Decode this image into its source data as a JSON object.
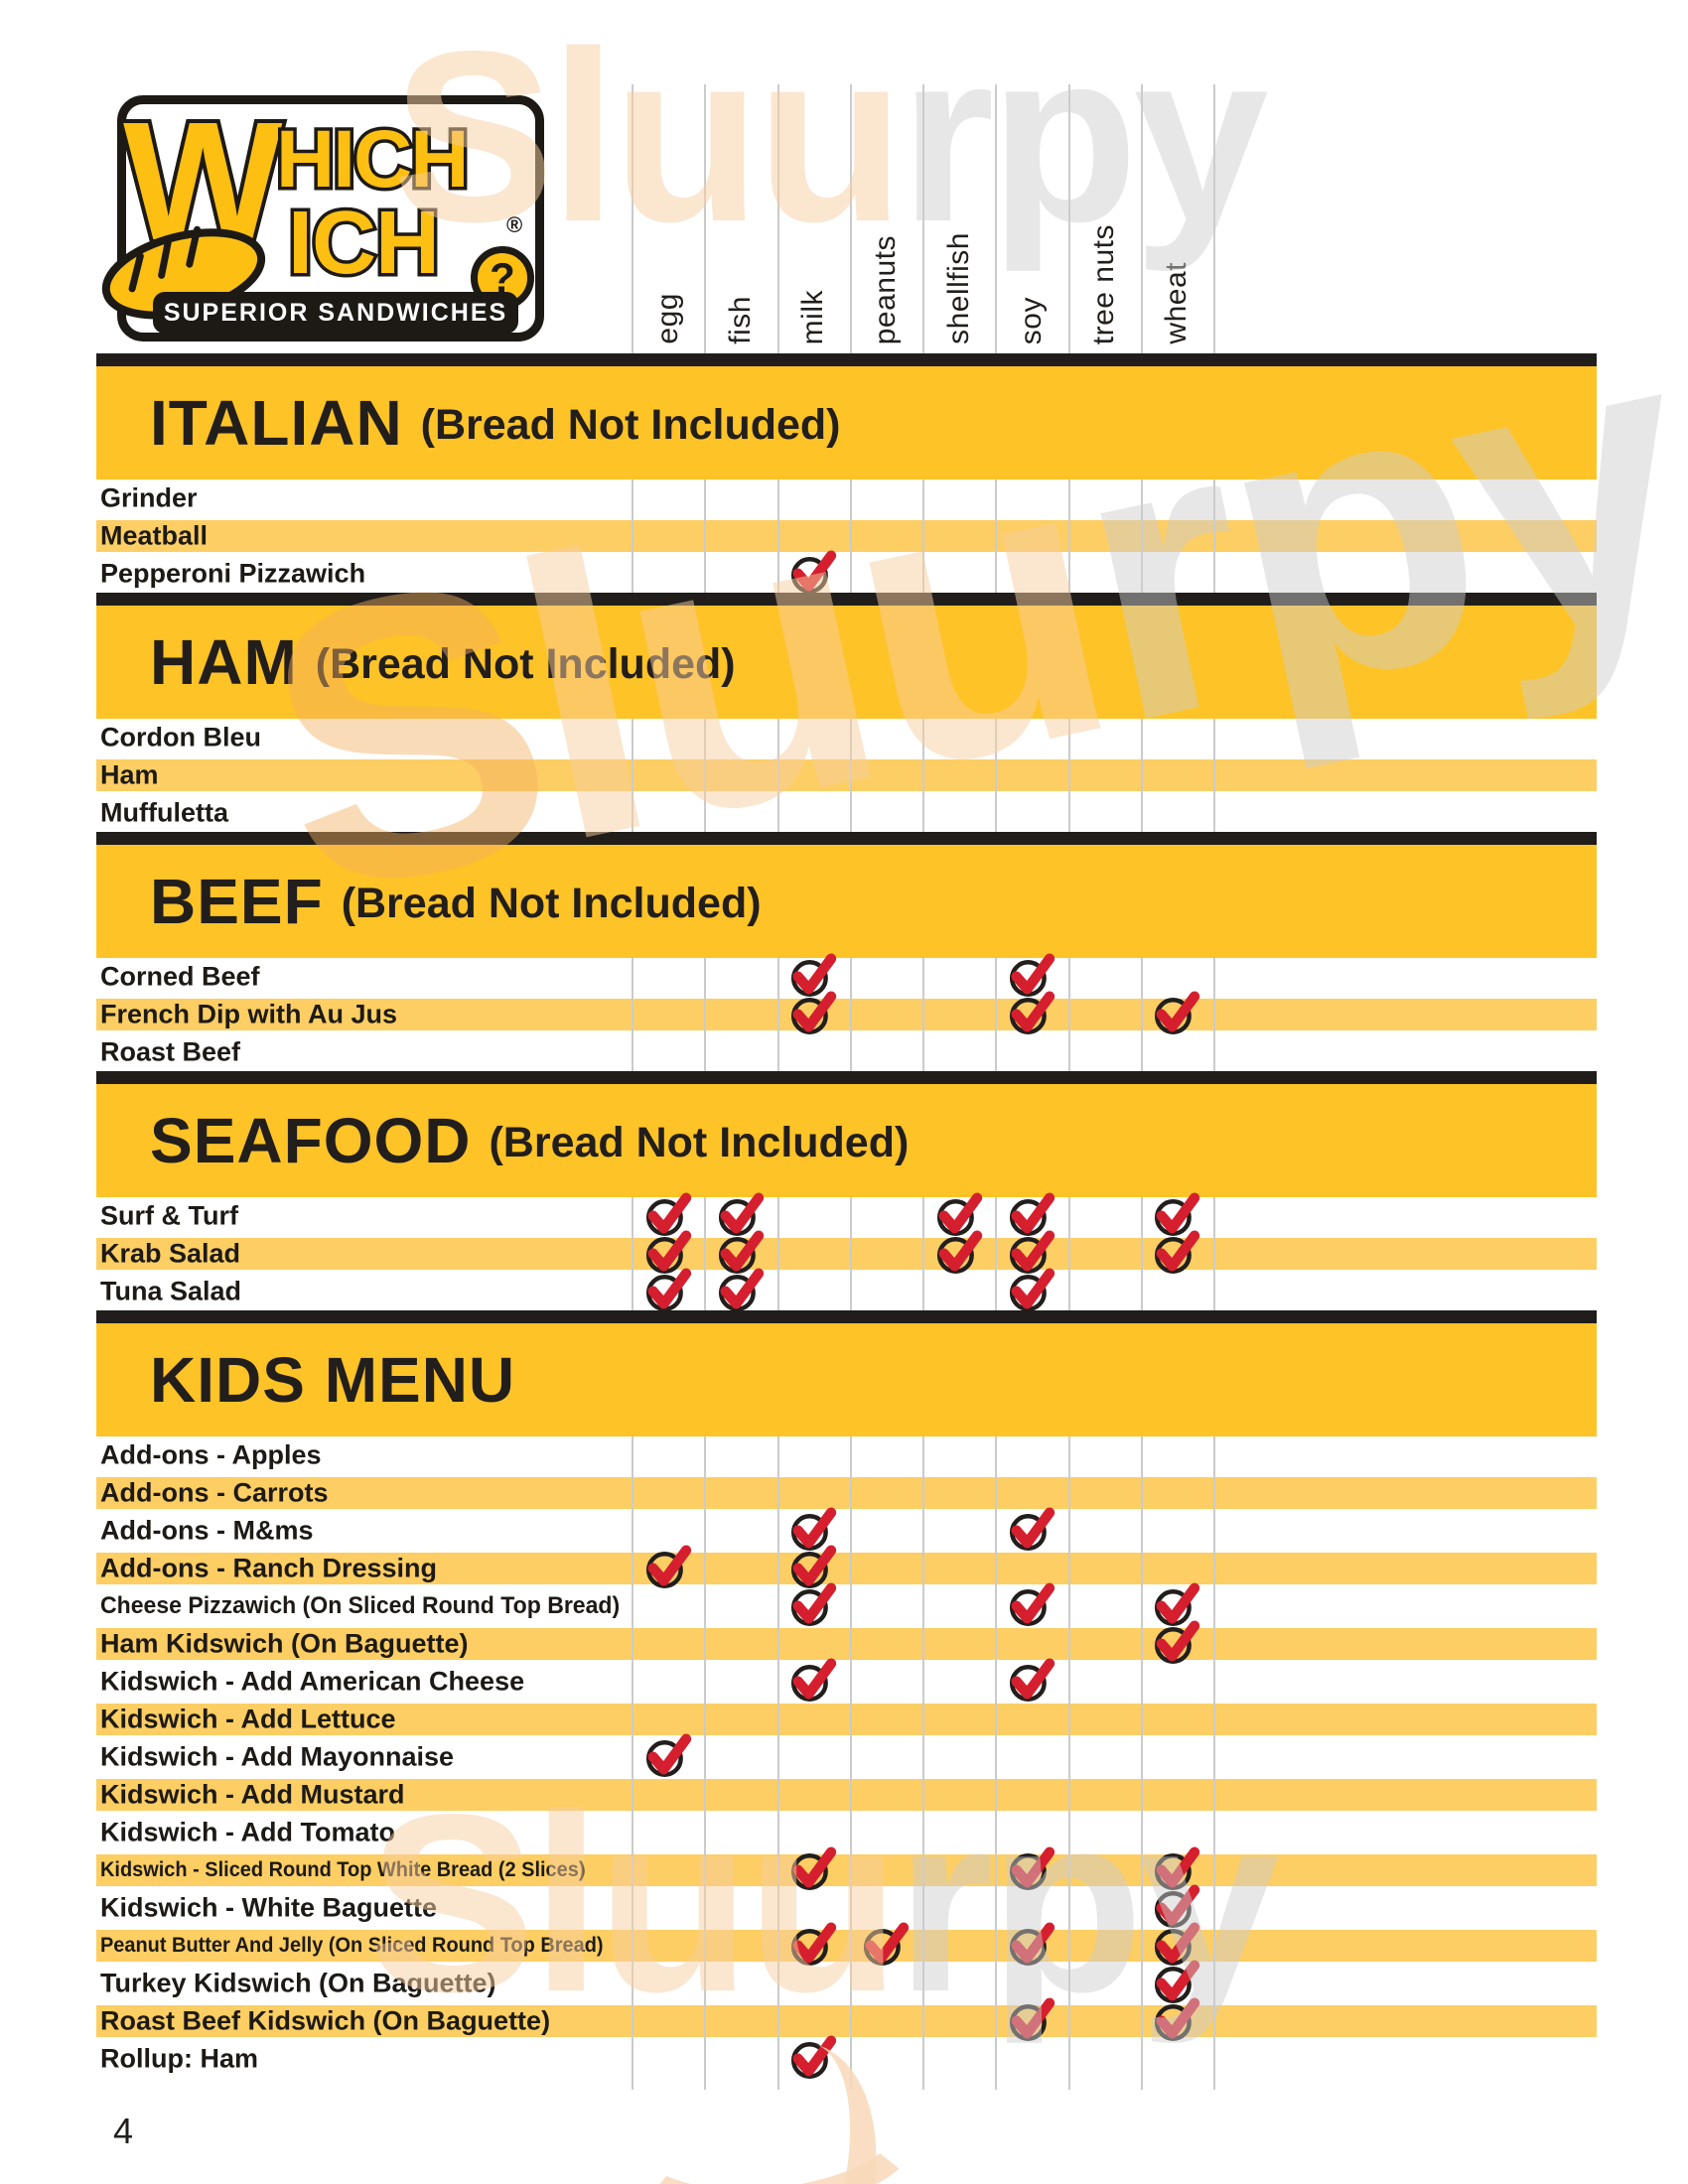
{
  "page": {
    "number": "4"
  },
  "logo": {
    "big_w": "W",
    "top_letters": "HICH",
    "bottom_letters": "ICH",
    "question_mark": "?",
    "registered": "®",
    "banner": "SUPERIOR SANDWICHES"
  },
  "allergens": [
    "egg",
    "fish",
    "milk",
    "peanuts",
    "shellfish",
    "soy",
    "tree nuts",
    "wheat"
  ],
  "colors": {
    "section_band_yellow": "#FEC327",
    "row_stripe_yellow": "#FDCE63",
    "divider_black": "#201D1A",
    "check_red": "#D51F2E",
    "check_ring_black": "#221E1C",
    "logo_yellow": "#FCBF12",
    "gridline_gray": "#CBCBCB"
  },
  "watermark": {
    "text": "Sluurpy"
  },
  "sections": [
    {
      "title": "ITALIAN",
      "subtitle": "(Bread Not Included)",
      "rows": [
        {
          "label": "Grinder",
          "allergens": []
        },
        {
          "label": "Meatball",
          "allergens": []
        },
        {
          "label": "Pepperoni Pizzawich",
          "allergens": [
            "milk"
          ]
        }
      ]
    },
    {
      "title": "HAM",
      "subtitle": "(Bread Not Included)",
      "rows": [
        {
          "label": "Cordon Bleu",
          "allergens": []
        },
        {
          "label": "Ham",
          "allergens": []
        },
        {
          "label": "Muffuletta",
          "allergens": []
        }
      ]
    },
    {
      "title": "BEEF",
      "subtitle": "(Bread Not Included)",
      "rows": [
        {
          "label": "Corned Beef",
          "allergens": [
            "milk",
            "soy"
          ]
        },
        {
          "label": "French Dip with Au Jus",
          "allergens": [
            "milk",
            "soy",
            "wheat"
          ]
        },
        {
          "label": "Roast Beef",
          "allergens": []
        }
      ]
    },
    {
      "title": "SEAFOOD",
      "subtitle": "(Bread Not Included)",
      "rows": [
        {
          "label": "Surf & Turf",
          "allergens": [
            "egg",
            "fish",
            "shellfish",
            "soy",
            "wheat"
          ]
        },
        {
          "label": "Krab Salad",
          "allergens": [
            "egg",
            "fish",
            "shellfish",
            "soy",
            "wheat"
          ]
        },
        {
          "label": "Tuna Salad",
          "allergens": [
            "egg",
            "fish",
            "soy"
          ]
        }
      ]
    },
    {
      "title": "KIDS MENU",
      "subtitle": "",
      "rows": [
        {
          "label": "Add-ons - Apples",
          "allergens": []
        },
        {
          "label": "Add-ons - Carrots",
          "allergens": []
        },
        {
          "label": "Add-ons - M&ms",
          "allergens": [
            "milk",
            "soy"
          ]
        },
        {
          "label": "Add-ons - Ranch Dressing",
          "allergens": [
            "egg",
            "milk"
          ]
        },
        {
          "label": "Cheese Pizzawich (On Sliced Round Top Bread)",
          "allergens": [
            "milk",
            "soy",
            "wheat"
          ]
        },
        {
          "label": "Ham Kidswich (On Baguette)",
          "allergens": [
            "wheat"
          ]
        },
        {
          "label": "Kidswich - Add American Cheese",
          "allergens": [
            "milk",
            "soy"
          ]
        },
        {
          "label": "Kidswich - Add Lettuce",
          "allergens": []
        },
        {
          "label": "Kidswich - Add Mayonnaise",
          "allergens": [
            "egg"
          ]
        },
        {
          "label": "Kidswich - Add Mustard",
          "allergens": []
        },
        {
          "label": "Kidswich - Add Tomato",
          "allergens": []
        },
        {
          "label": "Kidswich - Sliced Round Top White Bread (2 Slices)",
          "allergens": [
            "milk",
            "soy",
            "wheat"
          ]
        },
        {
          "label": "Kidswich - White Baguette",
          "allergens": [
            "wheat"
          ]
        },
        {
          "label": "Peanut Butter And Jelly (On Sliced Round Top Bread)",
          "allergens": [
            "milk",
            "peanuts",
            "soy",
            "wheat"
          ]
        },
        {
          "label": "Turkey Kidswich (On Baguette)",
          "allergens": [
            "wheat"
          ]
        },
        {
          "label": "Roast Beef Kidswich (On Baguette)",
          "allergens": [
            "soy",
            "wheat"
          ]
        },
        {
          "label": "Rollup: Ham",
          "allergens": [
            "milk"
          ]
        }
      ]
    }
  ]
}
